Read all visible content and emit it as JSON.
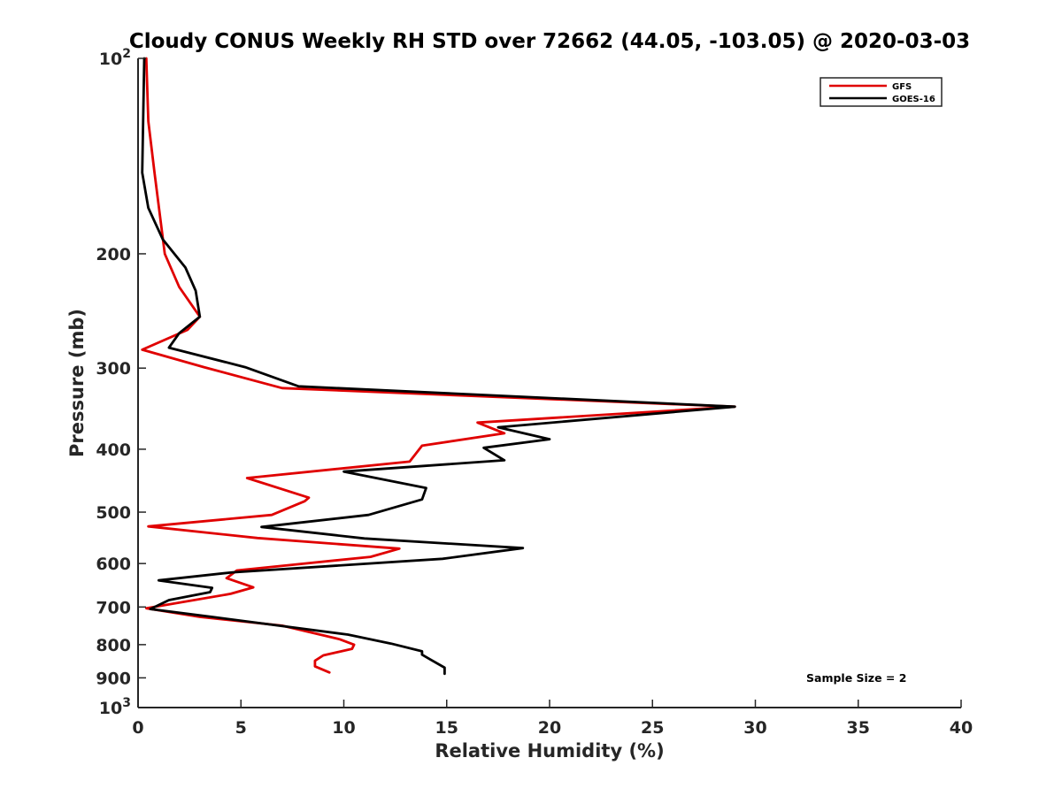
{
  "chart_data": {
    "type": "line",
    "title": "Cloudy CONUS Weekly RH STD over 72662 (44.05, -103.05) @ 2020-03-03",
    "xlabel": "Relative Humidity (%)",
    "ylabel": "Pressure (mb)",
    "xlim": [
      0,
      40
    ],
    "ylim": [
      100,
      1000
    ],
    "y_scale": "log",
    "y_reversed": true,
    "x_ticks": [
      "0",
      "5",
      "10",
      "15",
      "20",
      "25",
      "30",
      "35",
      "40"
    ],
    "y_tick_values": [
      100,
      200,
      300,
      400,
      500,
      600,
      700,
      800,
      900,
      1000
    ],
    "y_tick_labels": [
      {
        "base": "10",
        "exp": "2"
      },
      {
        "text": "200"
      },
      {
        "text": "300"
      },
      {
        "text": "400"
      },
      {
        "text": "500"
      },
      {
        "text": "600"
      },
      {
        "text": "700"
      },
      {
        "text": "800"
      },
      {
        "text": "900"
      },
      {
        "base": "10",
        "exp": "3"
      }
    ],
    "grid": false,
    "legend_position": "top-right",
    "series": [
      {
        "name": "GFS",
        "color": "#e00000",
        "points": [
          [
            0.4,
            100
          ],
          [
            0.5,
            125
          ],
          [
            0.8,
            150
          ],
          [
            1.3,
            200
          ],
          [
            2.0,
            225
          ],
          [
            3.0,
            250
          ],
          [
            2.4,
            262
          ],
          [
            0.2,
            281
          ],
          [
            3.2,
            299
          ],
          [
            7.0,
            322
          ],
          [
            29.0,
            344
          ],
          [
            16.5,
            364
          ],
          [
            17.8,
            378
          ],
          [
            13.8,
            395
          ],
          [
            13.2,
            418
          ],
          [
            5.3,
            443
          ],
          [
            8.3,
            475
          ],
          [
            8.1,
            481
          ],
          [
            6.5,
            505
          ],
          [
            0.5,
            526
          ],
          [
            5.8,
            548
          ],
          [
            12.7,
            569
          ],
          [
            11.3,
            586
          ],
          [
            4.8,
            615
          ],
          [
            4.3,
            632
          ],
          [
            5.6,
            653
          ],
          [
            4.5,
            668
          ],
          [
            0.4,
            703
          ],
          [
            3.0,
            725
          ],
          [
            7.0,
            748
          ],
          [
            9.8,
            785
          ],
          [
            10.5,
            800
          ],
          [
            10.4,
            812
          ],
          [
            9.0,
            831
          ],
          [
            8.6,
            847
          ],
          [
            8.6,
            864
          ],
          [
            9.3,
            883
          ]
        ]
      },
      {
        "name": "GOES-16",
        "color": "#000000",
        "points": [
          [
            0.3,
            100
          ],
          [
            0.2,
            150
          ],
          [
            0.5,
            170
          ],
          [
            1.2,
            190
          ],
          [
            2.3,
            210
          ],
          [
            2.8,
            228
          ],
          [
            3.0,
            250
          ],
          [
            2.0,
            265
          ],
          [
            1.5,
            279
          ],
          [
            5.2,
            299
          ],
          [
            7.8,
            320
          ],
          [
            29.0,
            344
          ],
          [
            17.5,
            370
          ],
          [
            20.0,
            386
          ],
          [
            16.8,
            398
          ],
          [
            17.8,
            416
          ],
          [
            10.0,
            433
          ],
          [
            14.0,
            459
          ],
          [
            13.8,
            478
          ],
          [
            11.2,
            505
          ],
          [
            6.0,
            527
          ],
          [
            11.0,
            549
          ],
          [
            18.7,
            568
          ],
          [
            14.8,
            590
          ],
          [
            4.6,
            619
          ],
          [
            1.0,
            637
          ],
          [
            3.6,
            654
          ],
          [
            3.5,
            664
          ],
          [
            1.5,
            683
          ],
          [
            0.6,
            705
          ],
          [
            3.6,
            725
          ],
          [
            10.2,
            772
          ],
          [
            12.3,
            797
          ],
          [
            13.8,
            819
          ],
          [
            13.8,
            829
          ],
          [
            14.2,
            843
          ],
          [
            14.9,
            868
          ],
          [
            14.9,
            887
          ]
        ]
      }
    ],
    "annotations": [
      "Sample Size = 2"
    ]
  }
}
